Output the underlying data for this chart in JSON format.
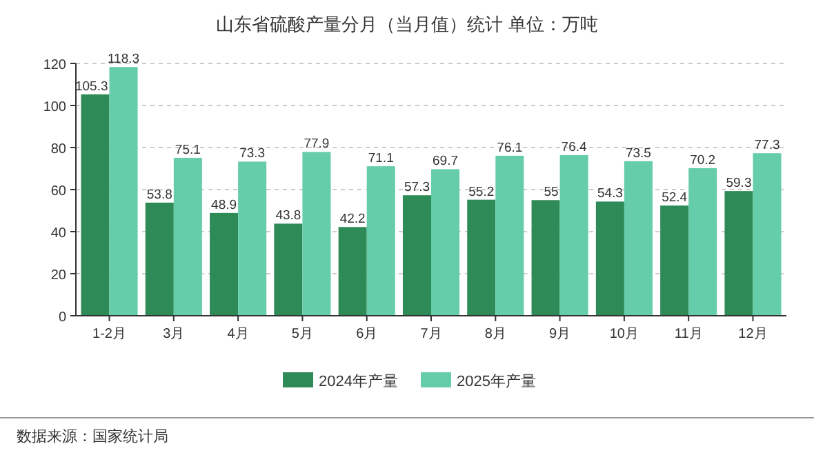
{
  "chart_data": {
    "type": "bar",
    "title": "山东省硫酸产量分月（当月值）统计  单位：万吨",
    "categories": [
      "1-2月",
      "3月",
      "4月",
      "5月",
      "6月",
      "7月",
      "8月",
      "9月",
      "10月",
      "11月",
      "12月"
    ],
    "series": [
      {
        "name": "2024年产量",
        "color": "#2e8b57",
        "values": [
          105.3,
          53.8,
          48.9,
          43.8,
          42.2,
          57.3,
          55.2,
          55,
          54.3,
          52.4,
          59.3
        ]
      },
      {
        "name": "2025年产量",
        "color": "#66cdaa",
        "values": [
          118.3,
          75.1,
          73.3,
          77.9,
          71.1,
          69.7,
          76.1,
          76.4,
          73.5,
          70.2,
          77.3
        ]
      }
    ],
    "ylim": [
      0,
      120
    ],
    "yticks": [
      0,
      20,
      40,
      60,
      80,
      100,
      120
    ],
    "grid": "y",
    "legend": "bottom",
    "data_labels": true,
    "annotations": [
      "数据来源：国家统计局"
    ]
  }
}
